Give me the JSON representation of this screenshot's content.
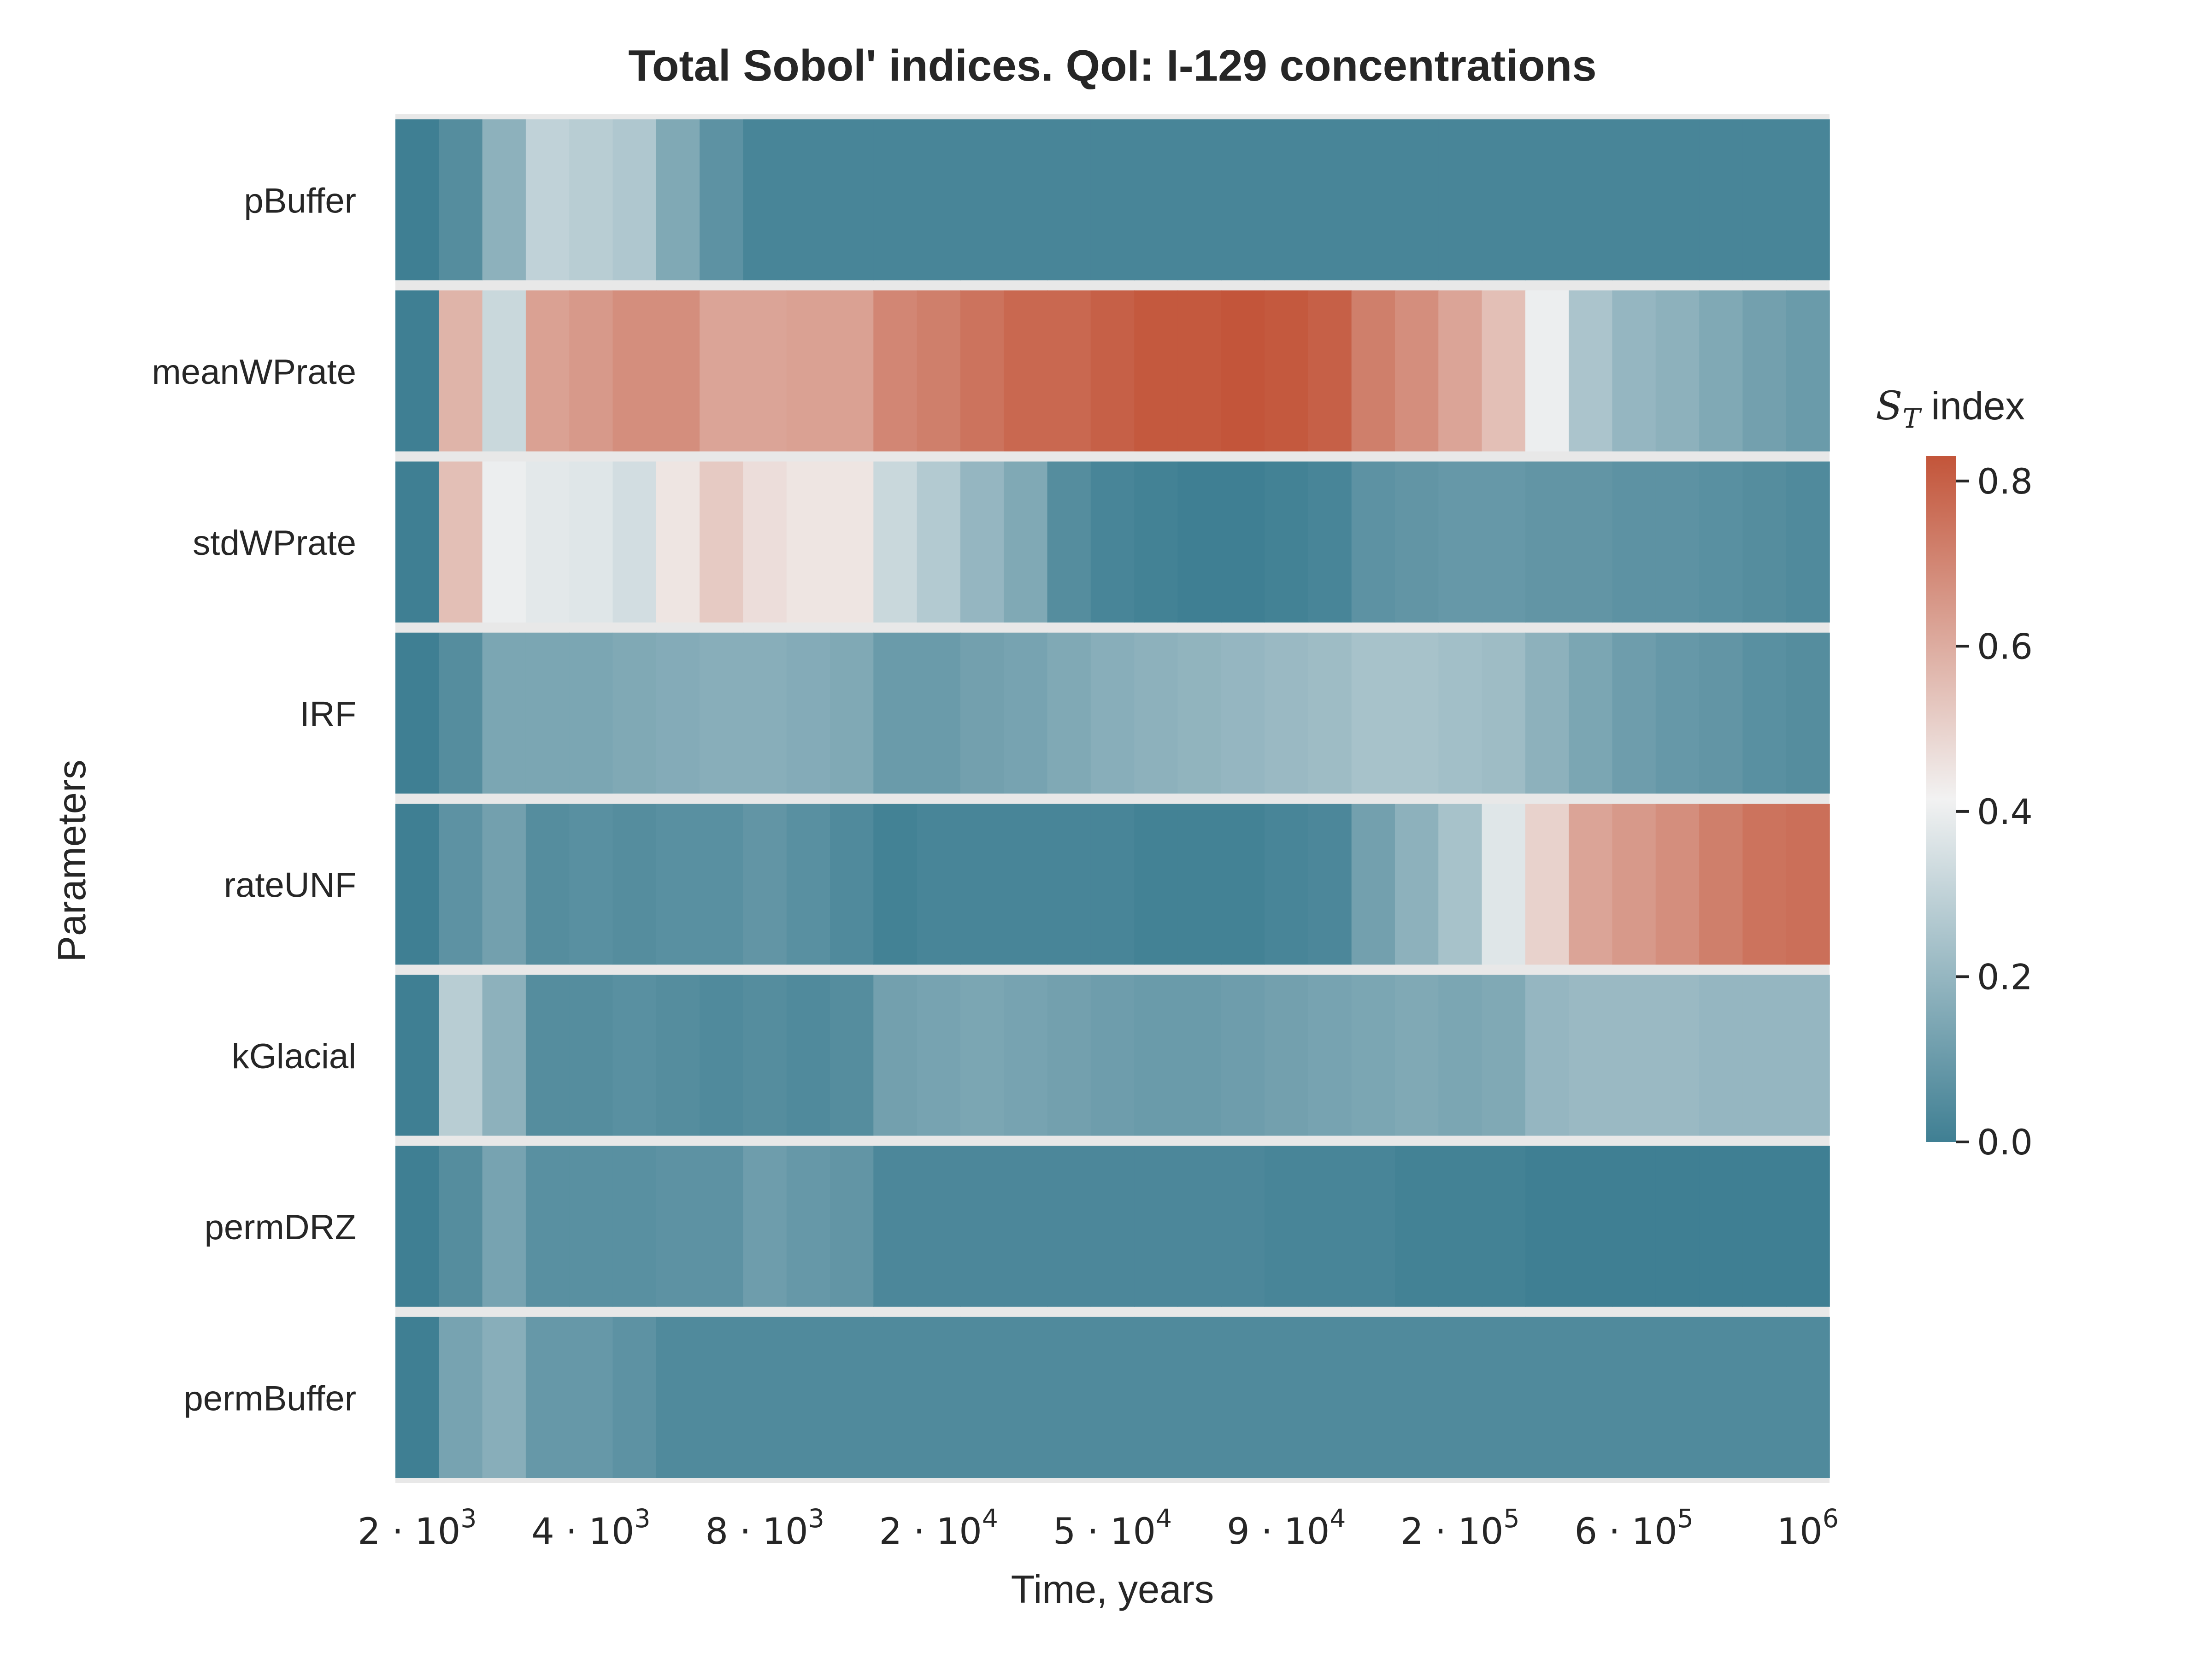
{
  "chart_data": {
    "type": "heatmap",
    "title": "Total Sobol' indices. QoI: I-129 concentrations",
    "xlabel": "Time, years",
    "ylabel": "Parameters",
    "x_tick_labels": [
      {
        "base": "2 · 10",
        "exp": "3",
        "column": 0
      },
      {
        "base": "4 · 10",
        "exp": "3",
        "column": 4
      },
      {
        "base": "8 · 10",
        "exp": "3",
        "column": 8
      },
      {
        "base": "2 · 10",
        "exp": "4",
        "column": 12
      },
      {
        "base": "5 · 10",
        "exp": "4",
        "column": 16
      },
      {
        "base": "9 · 10",
        "exp": "4",
        "column": 20
      },
      {
        "base": "2 · 10",
        "exp": "5",
        "column": 24
      },
      {
        "base": "6 · 10",
        "exp": "5",
        "column": 28
      },
      {
        "base": "10",
        "exp": "6",
        "column": 32
      }
    ],
    "rows": [
      "pBuffer",
      "meanWPrate",
      "stdWPrate",
      "IRF",
      "rateUNF",
      "kGlacial",
      "permDRZ",
      "permBuffer"
    ],
    "values": [
      [
        0.0,
        0.05,
        0.18,
        0.3,
        0.28,
        0.26,
        0.15,
        0.07,
        0.02,
        0.02,
        0.02,
        0.02,
        0.02,
        0.02,
        0.02,
        0.02,
        0.02,
        0.02,
        0.02,
        0.02,
        0.02,
        0.02,
        0.02,
        0.02,
        0.02,
        0.02,
        0.02,
        0.02,
        0.02,
        0.02,
        0.02,
        0.02,
        0.02
      ],
      [
        0.0,
        0.58,
        0.32,
        0.63,
        0.65,
        0.68,
        0.68,
        0.62,
        0.62,
        0.63,
        0.63,
        0.7,
        0.72,
        0.75,
        0.78,
        0.78,
        0.8,
        0.82,
        0.82,
        0.83,
        0.82,
        0.8,
        0.72,
        0.68,
        0.62,
        0.55,
        0.4,
        0.25,
        0.2,
        0.18,
        0.15,
        0.12,
        0.1
      ],
      [
        0.0,
        0.55,
        0.4,
        0.38,
        0.37,
        0.34,
        0.45,
        0.52,
        0.47,
        0.45,
        0.45,
        0.32,
        0.27,
        0.2,
        0.15,
        0.05,
        0.02,
        0.01,
        0.0,
        0.0,
        0.01,
        0.02,
        0.07,
        0.08,
        0.09,
        0.09,
        0.08,
        0.08,
        0.07,
        0.07,
        0.06,
        0.05,
        0.04
      ],
      [
        0.0,
        0.05,
        0.14,
        0.14,
        0.14,
        0.15,
        0.16,
        0.17,
        0.17,
        0.16,
        0.15,
        0.1,
        0.1,
        0.12,
        0.13,
        0.15,
        0.17,
        0.18,
        0.19,
        0.2,
        0.21,
        0.22,
        0.24,
        0.24,
        0.23,
        0.22,
        0.18,
        0.14,
        0.11,
        0.09,
        0.08,
        0.06,
        0.05
      ],
      [
        0.0,
        0.07,
        0.12,
        0.05,
        0.06,
        0.05,
        0.06,
        0.06,
        0.08,
        0.06,
        0.04,
        0.01,
        0.02,
        0.02,
        0.02,
        0.02,
        0.02,
        0.01,
        0.01,
        0.01,
        0.02,
        0.03,
        0.12,
        0.18,
        0.24,
        0.37,
        0.5,
        0.62,
        0.65,
        0.68,
        0.72,
        0.75,
        0.76
      ],
      [
        0.0,
        0.28,
        0.18,
        0.05,
        0.05,
        0.06,
        0.05,
        0.04,
        0.05,
        0.04,
        0.05,
        0.12,
        0.13,
        0.14,
        0.13,
        0.12,
        0.11,
        0.1,
        0.1,
        0.11,
        0.12,
        0.13,
        0.14,
        0.15,
        0.14,
        0.15,
        0.2,
        0.21,
        0.21,
        0.21,
        0.2,
        0.2,
        0.2
      ],
      [
        0.0,
        0.05,
        0.13,
        0.06,
        0.06,
        0.06,
        0.07,
        0.07,
        0.11,
        0.09,
        0.08,
        0.03,
        0.03,
        0.03,
        0.03,
        0.03,
        0.03,
        0.03,
        0.03,
        0.03,
        0.02,
        0.02,
        0.02,
        0.01,
        0.01,
        0.01,
        0.0,
        0.0,
        0.0,
        0.0,
        0.0,
        0.0,
        0.0
      ],
      [
        0.0,
        0.13,
        0.17,
        0.09,
        0.09,
        0.07,
        0.04,
        0.04,
        0.04,
        0.04,
        0.04,
        0.04,
        0.04,
        0.04,
        0.04,
        0.04,
        0.04,
        0.04,
        0.04,
        0.04,
        0.04,
        0.04,
        0.04,
        0.04,
        0.04,
        0.04,
        0.04,
        0.04,
        0.04,
        0.04,
        0.04,
        0.04,
        0.04
      ]
    ],
    "colorbar": {
      "title_symbol": "S",
      "title_subscript": "T",
      "title_rest": " index",
      "vmin": 0.0,
      "vmax": 0.83,
      "ticks": [
        {
          "value": 0.0,
          "label": "0.0"
        },
        {
          "value": 0.2,
          "label": "0.2"
        },
        {
          "value": 0.4,
          "label": "0.4"
        },
        {
          "value": 0.6,
          "label": "0.6"
        },
        {
          "value": 0.8,
          "label": "0.8"
        }
      ],
      "colors": {
        "low": "#3f7f93",
        "mid": "#f2f2f2",
        "high": "#c3553a"
      }
    },
    "separator_color": "#e8e8e8",
    "text_color": "#262626"
  }
}
